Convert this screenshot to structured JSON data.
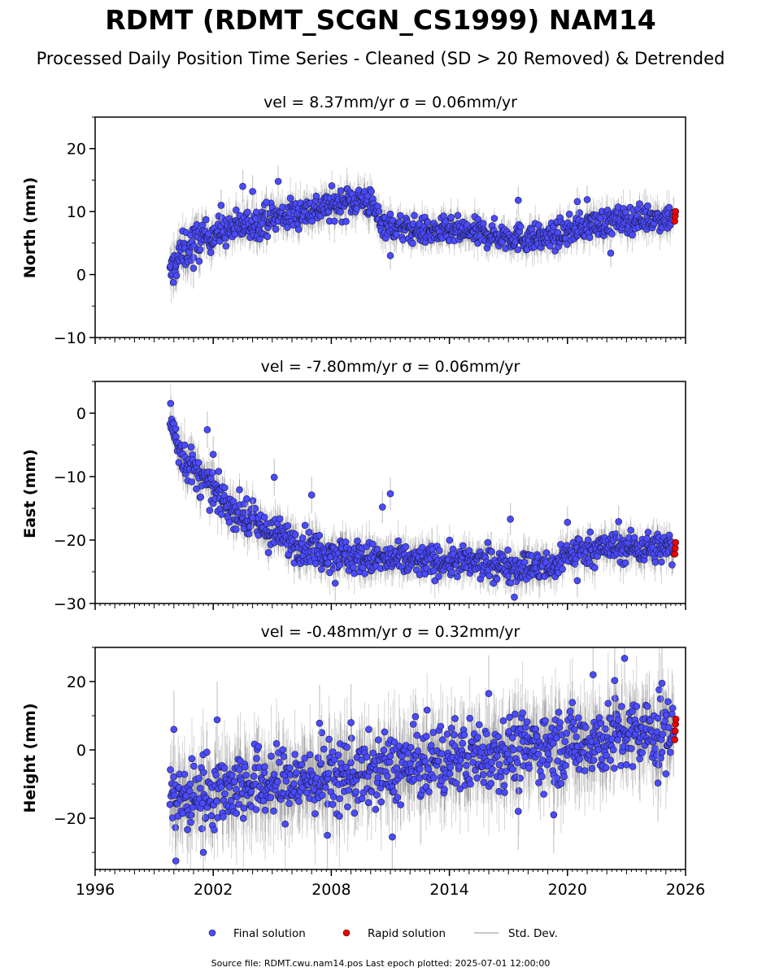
{
  "figure": {
    "title": "RDMT (RDMT_SCGN_CS1999) NAM14",
    "subtitle": "Processed Daily Position Time Series - Cleaned (SD > 20 Removed) & Detrended",
    "footnote": "Source file: RDMT.cwu.nam14.pos  Last epoch plotted: 2025-07-01 12:00:00"
  },
  "legend": {
    "final": "Final solution",
    "rapid": "Rapid solution",
    "std": "Std. Dev."
  },
  "colors": {
    "final": "#4b4bff",
    "rapid": "#ee0000",
    "std": "#b0b0b0"
  },
  "chart_data": [
    {
      "type": "scatter",
      "title": "vel = 8.37mm/yr   σ = 0.06mm/yr",
      "xlabel": "",
      "ylabel": "North (mm)",
      "xlim": [
        1996,
        2026
      ],
      "ylim": [
        -10,
        25
      ],
      "yticks": [
        "20",
        "10",
        "0",
        "−10"
      ],
      "yticks_values": [
        20,
        10,
        0,
        -10
      ],
      "series": [
        {
          "name": "Final solution",
          "t": [
            1999.8,
            2000.0,
            2000.3,
            2000.6,
            2001.0,
            2001.5,
            2002.0,
            2002.5,
            2003.0,
            2003.5,
            2004.0,
            2004.5,
            2005.0,
            2005.5,
            2006.0,
            2006.5,
            2007.0,
            2007.5,
            2008.0,
            2008.5,
            2009.0,
            2009.5,
            2010.0,
            2010.3,
            2010.6,
            2011.0,
            2011.5,
            2012.0,
            2012.5,
            2013.0,
            2013.5,
            2014.0,
            2014.5,
            2015.0,
            2015.5,
            2016.0,
            2016.5,
            2017.0,
            2017.5,
            2018.0,
            2018.5,
            2019.0,
            2019.5,
            2020.0,
            2020.5,
            2021.0,
            2021.5,
            2022.0,
            2022.5,
            2023.0,
            2023.5,
            2024.0,
            2024.5,
            2025.0,
            2025.4
          ],
          "v": [
            -0.5,
            1.5,
            3.0,
            4.0,
            5.0,
            5.8,
            6.4,
            6.9,
            7.3,
            7.7,
            8.1,
            8.5,
            8.9,
            9.3,
            9.6,
            10.0,
            10.3,
            10.6,
            10.9,
            11.3,
            11.7,
            12.0,
            11.5,
            9.5,
            8.3,
            7.7,
            7.3,
            7.1,
            7.0,
            6.8,
            6.8,
            6.9,
            6.8,
            6.7,
            6.5,
            6.4,
            6.2,
            6.1,
            5.9,
            5.8,
            5.8,
            5.9,
            6.3,
            6.9,
            7.4,
            7.8,
            8.1,
            8.3,
            8.5,
            8.7,
            8.8,
            9.0,
            9.0,
            9.1,
            9.2
          ]
        },
        {
          "name": "Rapid solution",
          "t": [
            2025.45,
            2025.47,
            2025.49
          ],
          "v": [
            8.5,
            9.3,
            10.0
          ]
        }
      ],
      "outliers": [
        [
          2003.5,
          14.0
        ],
        [
          2004.0,
          13.2
        ],
        [
          2005.3,
          14.8
        ],
        [
          2004.7,
          11.5
        ],
        [
          2002.4,
          11.0
        ],
        [
          2017.5,
          11.8
        ],
        [
          2020.5,
          11.6
        ],
        [
          2021.0,
          11.9
        ],
        [
          2022.2,
          3.4
        ],
        [
          2011.0,
          3.0
        ],
        [
          2001.0,
          1.0
        ]
      ],
      "bands": [
        [
          1999.8,
          2001.5,
          2.0
        ],
        [
          2001.5,
          2010.0,
          1.6
        ],
        [
          2010.0,
          2025.5,
          1.4
        ]
      ]
    },
    {
      "type": "scatter",
      "title": "vel = -7.80mm/yr   σ = 0.06mm/yr",
      "xlabel": "",
      "ylabel": "East (mm)",
      "xlim": [
        1996,
        2026
      ],
      "ylim": [
        -30,
        5
      ],
      "yticks": [
        "0",
        "−10",
        "−20",
        "−30"
      ],
      "yticks_values": [
        0,
        -10,
        -20,
        -30
      ],
      "series": [
        {
          "name": "Final solution",
          "t": [
            1999.8,
            2000.0,
            2000.3,
            2000.6,
            2001.0,
            2001.5,
            2002.0,
            2002.5,
            2003.0,
            2003.5,
            2004.0,
            2004.5,
            2005.0,
            2005.5,
            2006.0,
            2006.5,
            2007.0,
            2007.5,
            2008.0,
            2008.5,
            2009.0,
            2009.5,
            2010.0,
            2010.5,
            2011.0,
            2011.5,
            2012.0,
            2012.5,
            2013.0,
            2013.5,
            2014.0,
            2014.5,
            2015.0,
            2015.5,
            2016.0,
            2016.5,
            2017.0,
            2017.5,
            2018.0,
            2018.5,
            2019.0,
            2019.4,
            2019.6,
            2020.0,
            2020.5,
            2021.0,
            2021.5,
            2022.0,
            2022.5,
            2023.0,
            2023.5,
            2024.0,
            2024.5,
            2025.0,
            2025.4
          ],
          "v": [
            0.0,
            -3.0,
            -5.5,
            -7.3,
            -9.0,
            -10.8,
            -12.3,
            -13.8,
            -15.0,
            -16.2,
            -17.2,
            -18.1,
            -18.9,
            -19.6,
            -20.2,
            -20.8,
            -21.2,
            -21.6,
            -22.0,
            -22.3,
            -22.6,
            -22.8,
            -23.0,
            -23.1,
            -23.1,
            -23.1,
            -23.2,
            -23.3,
            -23.3,
            -23.3,
            -23.4,
            -23.5,
            -23.6,
            -23.7,
            -23.8,
            -23.9,
            -24.0,
            -24.1,
            -24.2,
            -24.3,
            -24.4,
            -24.5,
            -22.8,
            -22.2,
            -21.8,
            -21.5,
            -21.3,
            -21.2,
            -21.2,
            -21.2,
            -21.2,
            -21.2,
            -21.2,
            -21.2,
            -21.2
          ]
        },
        {
          "name": "Rapid solution",
          "t": [
            2025.45,
            2025.47,
            2025.49
          ],
          "v": [
            -22.2,
            -21.3,
            -20.4
          ]
        }
      ],
      "outliers": [
        [
          2001.7,
          -2.6
        ],
        [
          2002.0,
          -6.5
        ],
        [
          2005.1,
          -10.1
        ],
        [
          2007.0,
          -12.9
        ],
        [
          2011.0,
          -12.7
        ],
        [
          2010.6,
          -14.8
        ],
        [
          2017.1,
          -16.7
        ],
        [
          2020.0,
          -17.2
        ],
        [
          2022.6,
          -17.1
        ],
        [
          2017.3,
          -29.0
        ],
        [
          2008.2,
          -26.8
        ],
        [
          2020.5,
          -26.4
        ],
        [
          2003.7,
          -13.5
        ],
        [
          2004.0,
          -16.5
        ]
      ],
      "bands": [
        [
          1999.8,
          2001.5,
          2.0
        ],
        [
          2001.5,
          2010.0,
          1.8
        ],
        [
          2010.0,
          2025.5,
          1.6
        ]
      ]
    },
    {
      "type": "scatter",
      "title": "vel = -0.48mm/yr   σ = 0.32mm/yr",
      "xlabel": "",
      "ylabel": "Height (mm)",
      "xlim": [
        1996,
        2026
      ],
      "ylim": [
        -35,
        30
      ],
      "yticks": [
        "20",
        "0",
        "−20"
      ],
      "yticks_values": [
        20,
        0,
        -20
      ],
      "xticks": [
        "1996",
        "2002",
        "2008",
        "2014",
        "2020",
        "2026"
      ],
      "xticks_values": [
        1996,
        2002,
        2008,
        2014,
        2020,
        2026
      ],
      "series": [
        {
          "name": "Final solution",
          "t": [
            1999.8,
            2000.5,
            2001.0,
            2001.5,
            2002.0,
            2002.5,
            2003.0,
            2003.5,
            2004.0,
            2004.5,
            2005.0,
            2005.5,
            2006.0,
            2006.5,
            2007.0,
            2007.5,
            2008.0,
            2008.5,
            2009.0,
            2009.5,
            2010.0,
            2010.5,
            2011.0,
            2011.5,
            2012.0,
            2012.5,
            2013.0,
            2013.5,
            2014.0,
            2014.5,
            2015.0,
            2015.5,
            2016.0,
            2016.5,
            2017.0,
            2017.5,
            2018.0,
            2018.5,
            2019.0,
            2019.5,
            2020.0,
            2020.5,
            2021.0,
            2021.5,
            2022.0,
            2022.5,
            2023.0,
            2023.5,
            2024.0,
            2024.5,
            2025.0,
            2025.4
          ],
          "v": [
            -14,
            -15,
            -13,
            -12,
            -12,
            -11,
            -11,
            -10,
            -10,
            -10,
            -10,
            -10,
            -9,
            -9,
            -9,
            -8,
            -8,
            -8,
            -7,
            -7,
            -7,
            -6,
            -6,
            -5,
            -5,
            -4,
            -4,
            -3,
            -3,
            -2,
            -2,
            -1,
            -1,
            0,
            0,
            0,
            0,
            1,
            1,
            1,
            2,
            2,
            3,
            3,
            3,
            4,
            4,
            4,
            5,
            5,
            5,
            5
          ]
        },
        {
          "name": "Rapid solution",
          "t": [
            2025.45,
            2025.47,
            2025.49,
            2025.51
          ],
          "v": [
            3.0,
            5.5,
            7.5,
            9.0
          ]
        }
      ],
      "outliers": [
        [
          2000.0,
          6.0
        ],
        [
          2002.2,
          8.8
        ],
        [
          2007.4,
          7.8
        ],
        [
          2009.0,
          8.0
        ],
        [
          2016.0,
          16.5
        ],
        [
          2021.3,
          22.0
        ],
        [
          2022.9,
          26.8
        ],
        [
          2022.4,
          20.3
        ],
        [
          2024.8,
          19.5
        ],
        [
          2024.6,
          -9.7
        ],
        [
          2000.1,
          -32.5
        ],
        [
          2001.5,
          -30.0
        ],
        [
          2007.8,
          -25.0
        ],
        [
          2011.1,
          -25.5
        ],
        [
          2019.3,
          -19.0
        ],
        [
          2017.5,
          -18.0
        ]
      ],
      "bands": [
        [
          1999.8,
          2025.5,
          7.0
        ]
      ]
    }
  ]
}
